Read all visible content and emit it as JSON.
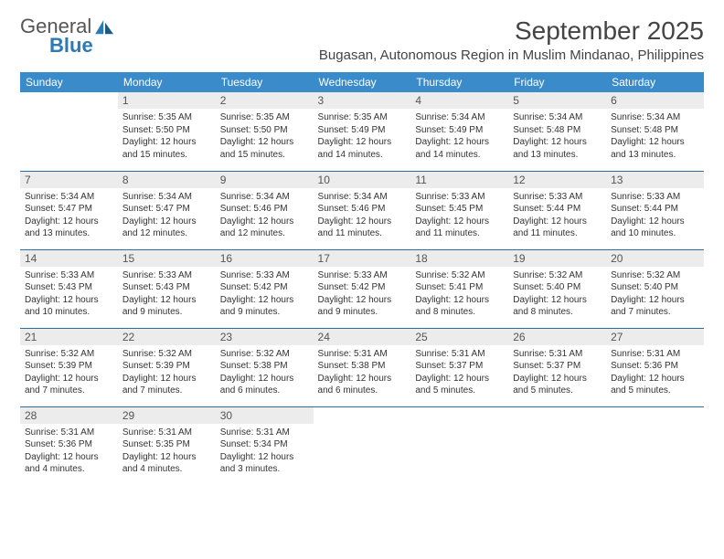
{
  "logo": {
    "word1": "General",
    "word2": "Blue"
  },
  "title": "September 2025",
  "location": "Bugasan, Autonomous Region in Muslim Mindanao, Philippines",
  "colors": {
    "header_bg": "#3a8bc9",
    "header_text": "#ffffff",
    "daynum_bg": "#ececec",
    "daynum_text": "#555555",
    "cell_border": "#2b6ea5",
    "body_text": "#333333",
    "logo_blue": "#2b7ab8",
    "logo_gray": "#555555"
  },
  "weekdays": [
    "Sunday",
    "Monday",
    "Tuesday",
    "Wednesday",
    "Thursday",
    "Friday",
    "Saturday"
  ],
  "weeks": [
    [
      null,
      {
        "d": "1",
        "sr": "5:35 AM",
        "ss": "5:50 PM",
        "dl": "12 hours and 15 minutes."
      },
      {
        "d": "2",
        "sr": "5:35 AM",
        "ss": "5:50 PM",
        "dl": "12 hours and 15 minutes."
      },
      {
        "d": "3",
        "sr": "5:35 AM",
        "ss": "5:49 PM",
        "dl": "12 hours and 14 minutes."
      },
      {
        "d": "4",
        "sr": "5:34 AM",
        "ss": "5:49 PM",
        "dl": "12 hours and 14 minutes."
      },
      {
        "d": "5",
        "sr": "5:34 AM",
        "ss": "5:48 PM",
        "dl": "12 hours and 13 minutes."
      },
      {
        "d": "6",
        "sr": "5:34 AM",
        "ss": "5:48 PM",
        "dl": "12 hours and 13 minutes."
      }
    ],
    [
      {
        "d": "7",
        "sr": "5:34 AM",
        "ss": "5:47 PM",
        "dl": "12 hours and 13 minutes."
      },
      {
        "d": "8",
        "sr": "5:34 AM",
        "ss": "5:47 PM",
        "dl": "12 hours and 12 minutes."
      },
      {
        "d": "9",
        "sr": "5:34 AM",
        "ss": "5:46 PM",
        "dl": "12 hours and 12 minutes."
      },
      {
        "d": "10",
        "sr": "5:34 AM",
        "ss": "5:46 PM",
        "dl": "12 hours and 11 minutes."
      },
      {
        "d": "11",
        "sr": "5:33 AM",
        "ss": "5:45 PM",
        "dl": "12 hours and 11 minutes."
      },
      {
        "d": "12",
        "sr": "5:33 AM",
        "ss": "5:44 PM",
        "dl": "12 hours and 11 minutes."
      },
      {
        "d": "13",
        "sr": "5:33 AM",
        "ss": "5:44 PM",
        "dl": "12 hours and 10 minutes."
      }
    ],
    [
      {
        "d": "14",
        "sr": "5:33 AM",
        "ss": "5:43 PM",
        "dl": "12 hours and 10 minutes."
      },
      {
        "d": "15",
        "sr": "5:33 AM",
        "ss": "5:43 PM",
        "dl": "12 hours and 9 minutes."
      },
      {
        "d": "16",
        "sr": "5:33 AM",
        "ss": "5:42 PM",
        "dl": "12 hours and 9 minutes."
      },
      {
        "d": "17",
        "sr": "5:33 AM",
        "ss": "5:42 PM",
        "dl": "12 hours and 9 minutes."
      },
      {
        "d": "18",
        "sr": "5:32 AM",
        "ss": "5:41 PM",
        "dl": "12 hours and 8 minutes."
      },
      {
        "d": "19",
        "sr": "5:32 AM",
        "ss": "5:40 PM",
        "dl": "12 hours and 8 minutes."
      },
      {
        "d": "20",
        "sr": "5:32 AM",
        "ss": "5:40 PM",
        "dl": "12 hours and 7 minutes."
      }
    ],
    [
      {
        "d": "21",
        "sr": "5:32 AM",
        "ss": "5:39 PM",
        "dl": "12 hours and 7 minutes."
      },
      {
        "d": "22",
        "sr": "5:32 AM",
        "ss": "5:39 PM",
        "dl": "12 hours and 7 minutes."
      },
      {
        "d": "23",
        "sr": "5:32 AM",
        "ss": "5:38 PM",
        "dl": "12 hours and 6 minutes."
      },
      {
        "d": "24",
        "sr": "5:31 AM",
        "ss": "5:38 PM",
        "dl": "12 hours and 6 minutes."
      },
      {
        "d": "25",
        "sr": "5:31 AM",
        "ss": "5:37 PM",
        "dl": "12 hours and 5 minutes."
      },
      {
        "d": "26",
        "sr": "5:31 AM",
        "ss": "5:37 PM",
        "dl": "12 hours and 5 minutes."
      },
      {
        "d": "27",
        "sr": "5:31 AM",
        "ss": "5:36 PM",
        "dl": "12 hours and 5 minutes."
      }
    ],
    [
      {
        "d": "28",
        "sr": "5:31 AM",
        "ss": "5:36 PM",
        "dl": "12 hours and 4 minutes."
      },
      {
        "d": "29",
        "sr": "5:31 AM",
        "ss": "5:35 PM",
        "dl": "12 hours and 4 minutes."
      },
      {
        "d": "30",
        "sr": "5:31 AM",
        "ss": "5:34 PM",
        "dl": "12 hours and 3 minutes."
      },
      null,
      null,
      null,
      null
    ]
  ],
  "labels": {
    "sunrise": "Sunrise:",
    "sunset": "Sunset:",
    "daylight": "Daylight:"
  }
}
